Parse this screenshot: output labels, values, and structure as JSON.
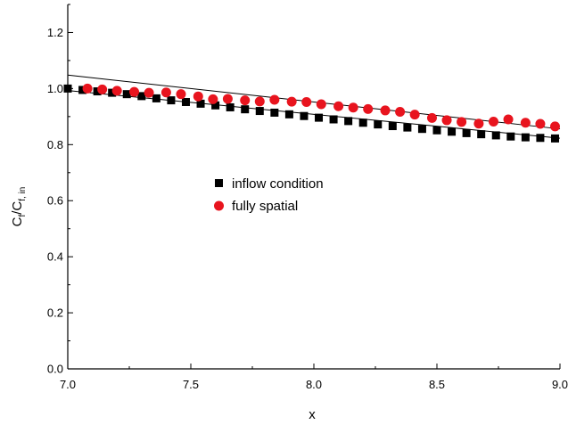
{
  "chart_data": {
    "type": "scatter",
    "xlabel": "x",
    "ylabel": {
      "main": "C",
      "sub1": "f",
      "sep": "/C",
      "sub2": "f, in"
    },
    "xlim": [
      7.0,
      9.0
    ],
    "ylim": [
      0.0,
      1.3
    ],
    "xticks": [
      "7.0",
      "7.5",
      "8.0",
      "8.5",
      "9.0"
    ],
    "yticks": [
      "0.0",
      "0.2",
      "0.4",
      "0.6",
      "0.8",
      "1.0",
      "1.2"
    ],
    "legend_position": "center",
    "series": [
      {
        "name": "inflow condition",
        "marker": "square",
        "color": "#000000",
        "x": [
          7.0,
          7.06,
          7.12,
          7.18,
          7.24,
          7.3,
          7.36,
          7.42,
          7.48,
          7.54,
          7.6,
          7.66,
          7.72,
          7.78,
          7.84,
          7.9,
          7.96,
          8.02,
          8.08,
          8.14,
          8.2,
          8.26,
          8.32,
          8.38,
          8.44,
          8.5,
          8.56,
          8.62,
          8.68,
          8.74,
          8.8,
          8.86,
          8.92,
          8.98
        ],
        "y": [
          1.0,
          0.995,
          0.99,
          0.985,
          0.98,
          0.973,
          0.965,
          0.958,
          0.952,
          0.946,
          0.94,
          0.933,
          0.926,
          0.92,
          0.914,
          0.908,
          0.902,
          0.896,
          0.89,
          0.884,
          0.878,
          0.872,
          0.866,
          0.861,
          0.856,
          0.851,
          0.846,
          0.841,
          0.837,
          0.833,
          0.829,
          0.826,
          0.824,
          0.822
        ]
      },
      {
        "name": "fully spatial",
        "marker": "circle",
        "color": "#e8141e",
        "x": [
          7.08,
          7.14,
          7.2,
          7.27,
          7.33,
          7.4,
          7.46,
          7.53,
          7.59,
          7.65,
          7.72,
          7.78,
          7.84,
          7.91,
          7.97,
          8.03,
          8.1,
          8.16,
          8.22,
          8.29,
          8.35,
          8.41,
          8.48,
          8.54,
          8.6,
          8.67,
          8.73,
          8.79,
          8.86,
          8.92,
          8.98
        ],
        "y": [
          1.0,
          0.997,
          0.992,
          0.988,
          0.985,
          0.986,
          0.98,
          0.972,
          0.962,
          0.963,
          0.958,
          0.954,
          0.96,
          0.953,
          0.952,
          0.944,
          0.937,
          0.932,
          0.927,
          0.922,
          0.917,
          0.907,
          0.895,
          0.887,
          0.881,
          0.875,
          0.882,
          0.89,
          0.878,
          0.874,
          0.865
        ]
      }
    ],
    "fit_lines": [
      {
        "x": [
          7.0,
          9.0
        ],
        "y": [
          0.993,
          0.823
        ]
      },
      {
        "x": [
          7.0,
          9.0
        ],
        "y": [
          1.048,
          0.856
        ]
      }
    ]
  }
}
